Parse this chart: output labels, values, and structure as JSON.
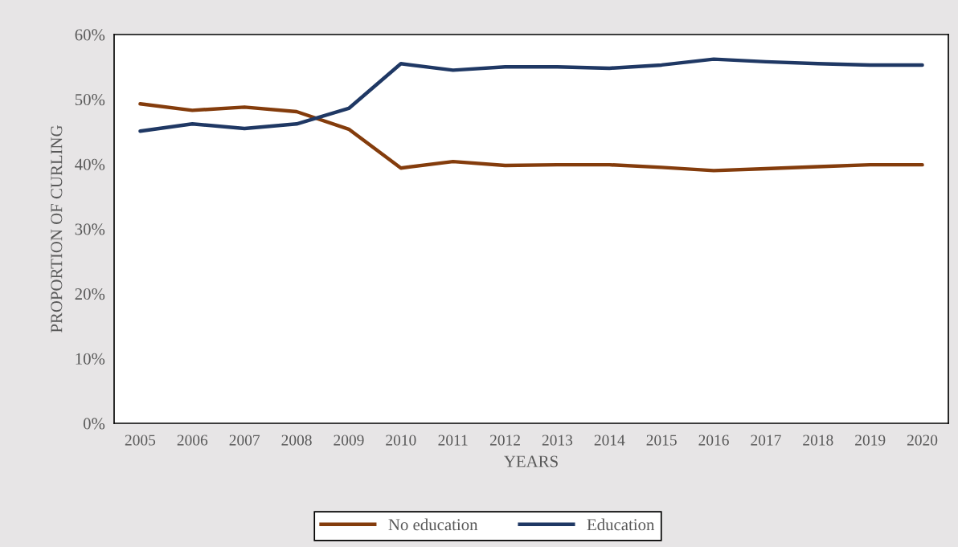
{
  "chart_data": {
    "type": "line",
    "xlabel": "YEARS",
    "ylabel": "PROPORTION OF CURLING",
    "categories": [
      "2005",
      "2006",
      "2007",
      "2008",
      "2009",
      "2010",
      "2011",
      "2012",
      "2013",
      "2014",
      "2015",
      "2016",
      "2017",
      "2018",
      "2019",
      "2020"
    ],
    "series": [
      {
        "name": "No education",
        "color": "#843c0c",
        "values": [
          49.3,
          48.3,
          48.8,
          48.1,
          45.4,
          39.4,
          40.4,
          39.8,
          39.9,
          39.9,
          39.5,
          39.0,
          39.3,
          39.6,
          39.9,
          39.9
        ]
      },
      {
        "name": "Education",
        "color": "#1f3864",
        "values": [
          45.1,
          46.2,
          45.5,
          46.2,
          48.6,
          55.5,
          54.5,
          55.0,
          55.0,
          54.8,
          55.3,
          56.2,
          55.8,
          55.5,
          55.3,
          55.3
        ]
      }
    ],
    "ylim": [
      0,
      60
    ],
    "yticks": [
      {
        "value": 0,
        "label": "0%"
      },
      {
        "value": 10,
        "label": "10%"
      },
      {
        "value": 20,
        "label": "20%"
      },
      {
        "value": 30,
        "label": "30%"
      },
      {
        "value": 40,
        "label": "40%"
      },
      {
        "value": 50,
        "label": "50%"
      },
      {
        "value": 60,
        "label": "60%"
      }
    ],
    "grid": false,
    "legend": "bottom",
    "marker": "none",
    "line_style": "solid"
  }
}
